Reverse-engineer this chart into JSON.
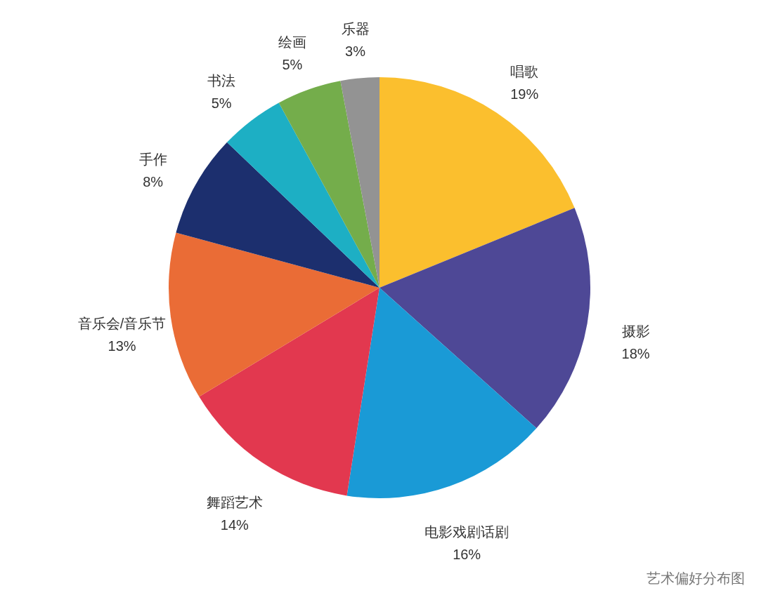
{
  "chart_data": {
    "type": "pie",
    "categories": [
      "唱歌",
      "摄影",
      "电影戏剧话剧",
      "舞蹈艺术",
      "音乐会/音乐节",
      "手作",
      "书法",
      "绘画",
      "乐器"
    ],
    "values": [
      19,
      18,
      16,
      14,
      13,
      8,
      5,
      5,
      3
    ],
    "value_labels": [
      "19%",
      "18%",
      "16%",
      "14%",
      "13%",
      "8%",
      "5%",
      "5%",
      "3%"
    ],
    "colors": [
      "#fbbf2e",
      "#4e4896",
      "#1a9ad6",
      "#e2384f",
      "#ea6c36",
      "#1c2f6e",
      "#1dafc4",
      "#74ad4b",
      "#939393"
    ],
    "legend": false,
    "annotations": [
      "艺术偏好分布图"
    ]
  }
}
